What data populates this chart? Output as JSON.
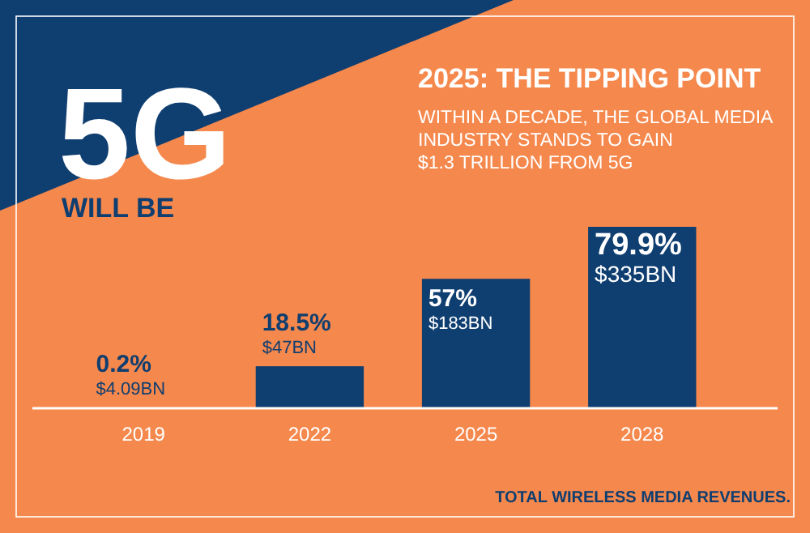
{
  "chart_data": {
    "type": "bar",
    "title": "2025: THE TIPPING POINT",
    "subtitle": "WITHIN A DECADE, THE GLOBAL MEDIA\nINDUSTRY STANDS TO GAIN\n$1.3 TRILLION FROM 5G",
    "annotations": [
      "5G",
      "WILL BE",
      "TOTAL WIRELESS MEDIA REVENUES."
    ],
    "categories": [
      "2019",
      "2022",
      "2025",
      "2028"
    ],
    "values": [
      0.2,
      18.5,
      57,
      79.9
    ],
    "value_labels": [
      "0.2%\n$4.09BN",
      "18.5%\n$47BN",
      "57%\n$183BN",
      "79.9%\n$335BN"
    ],
    "color": "#0f3e70"
  }
}
